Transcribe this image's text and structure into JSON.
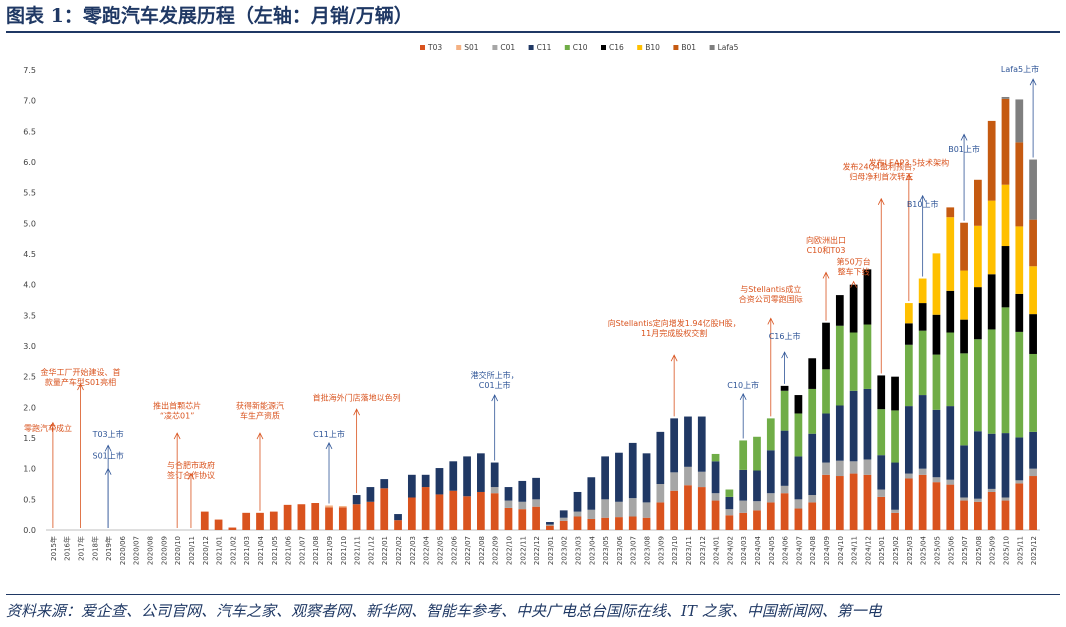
{
  "header": {
    "title": "图表 1：零跑汽车发展历程（左轴：月销/万辆）"
  },
  "footer": {
    "source": "资料来源：爱企查、公司官网、汽车之家、观察者网、新华网、智能车参考、中央广电总台国际在线、IT 之家、中国新闻网、第一电"
  },
  "chart_data": {
    "type": "bar",
    "stacked": true,
    "ylabel": "月销/万辆",
    "ylim": [
      0,
      7.5
    ],
    "yticks": [
      "0.0",
      "0.5",
      "1.0",
      "1.5",
      "2.0",
      "2.5",
      "3.0",
      "3.5",
      "4.0",
      "4.5",
      "5.0",
      "5.5",
      "6.0",
      "6.5",
      "7.0",
      "7.5"
    ],
    "legend_position": "top-center",
    "categories": [
      "2015年",
      "2016年",
      "2017年",
      "2018年",
      "2019年",
      "2020/06",
      "2020/07",
      "2020/08",
      "2020/09",
      "2020/10",
      "2020/11",
      "2020/12",
      "2021/01",
      "2021/02",
      "2021/03",
      "2021/04",
      "2021/05",
      "2021/06",
      "2021/07",
      "2021/08",
      "2021/09",
      "2021/10",
      "2021/11",
      "2021/12",
      "2022/01",
      "2022/02",
      "2022/03",
      "2022/04",
      "2022/05",
      "2022/06",
      "2022/07",
      "2022/08",
      "2022/09",
      "2022/10",
      "2022/11",
      "2022/12",
      "2023/01",
      "2023/02",
      "2023/03",
      "2023/04",
      "2023/05",
      "2023/06",
      "2023/07",
      "2023/08",
      "2023/09",
      "2023/10",
      "2023/11",
      "2023/12",
      "2024/01",
      "2024/02",
      "2024/03",
      "2024/04",
      "2024/05",
      "2024/06",
      "2024/07",
      "2024/08",
      "2024/09",
      "2024/10",
      "2024/11",
      "2024/12",
      "2025/01",
      "2025/02",
      "2025/03",
      "2025/04",
      "2025/05",
      "2025/06",
      "2025/07",
      "2025/08",
      "2025/09",
      "2025/10",
      "2025/11",
      "2025/12"
    ],
    "series": [
      {
        "name": "T03",
        "color": "#d9531e",
        "values": [
          0,
          0,
          0,
          0,
          0,
          0,
          0,
          0,
          0,
          0,
          0,
          0.3,
          0.17,
          0.04,
          0.28,
          0.28,
          0.3,
          0.41,
          0.42,
          0.44,
          0.37,
          0.37,
          0.42,
          0.46,
          0.68,
          0.16,
          0.53,
          0.7,
          0.58,
          0.64,
          0.55,
          0.62,
          0.6,
          0.36,
          0.34,
          0.38,
          0.07,
          0.15,
          0.22,
          0.18,
          0.2,
          0.21,
          0.22,
          0.2,
          0.45,
          0.64,
          0.73,
          0.7,
          0.48,
          0.24,
          0.28,
          0.32,
          0.45,
          0.6,
          0.35,
          0.45,
          0.9,
          0.88,
          0.92,
          0.9,
          0.54,
          0.28,
          0.84,
          0.9,
          0.78,
          0.74,
          0.48,
          0.46,
          0.62,
          0.48,
          0.76,
          0.88
        ]
      },
      {
        "name": "S01",
        "color": "#f4b183",
        "values": [
          0,
          0,
          0,
          0,
          0,
          0,
          0,
          0,
          0,
          0,
          0,
          0,
          0,
          0,
          0,
          0,
          0,
          0,
          0,
          0,
          0.03,
          0.02,
          0,
          0,
          0,
          0,
          0,
          0,
          0,
          0,
          0,
          0,
          0,
          0,
          0,
          0,
          0,
          0,
          0,
          0,
          0,
          0,
          0,
          0,
          0,
          0,
          0,
          0,
          0,
          0,
          0,
          0,
          0,
          0,
          0,
          0,
          0,
          0,
          0,
          0,
          0,
          0,
          0,
          0,
          0,
          0,
          0,
          0,
          0,
          0,
          0,
          0
        ]
      },
      {
        "name": "C01",
        "color": "#a6a6a6",
        "values": [
          0,
          0,
          0,
          0,
          0,
          0,
          0,
          0,
          0,
          0,
          0,
          0,
          0,
          0,
          0,
          0,
          0,
          0,
          0,
          0,
          0,
          0,
          0,
          0,
          0,
          0,
          0,
          0,
          0,
          0,
          0,
          0,
          0.1,
          0.12,
          0.12,
          0.12,
          0.02,
          0.05,
          0.08,
          0.15,
          0.3,
          0.25,
          0.3,
          0.25,
          0.3,
          0.3,
          0.3,
          0.25,
          0.12,
          0.1,
          0.2,
          0.15,
          0.15,
          0.12,
          0.15,
          0.12,
          0.2,
          0.25,
          0.2,
          0.25,
          0.12,
          0.05,
          0.08,
          0.1,
          0.08,
          0.08,
          0.05,
          0.05,
          0.05,
          0.05,
          0.05,
          0.12
        ]
      },
      {
        "name": "C11",
        "color": "#203864",
        "values": [
          0,
          0,
          0,
          0,
          0,
          0,
          0,
          0,
          0,
          0,
          0,
          0,
          0,
          0,
          0,
          0,
          0,
          0,
          0,
          0,
          0,
          0,
          0.15,
          0.24,
          0.15,
          0.1,
          0.37,
          0.2,
          0.43,
          0.48,
          0.65,
          0.63,
          0.4,
          0.22,
          0.34,
          0.35,
          0.04,
          0.12,
          0.32,
          0.53,
          0.7,
          0.8,
          0.9,
          0.8,
          0.85,
          0.88,
          0.82,
          0.9,
          0.52,
          0.2,
          0.5,
          0.5,
          0.7,
          0.9,
          0.7,
          1.0,
          0.8,
          0.9,
          1.15,
          1.15,
          0.56,
          0.77,
          1.1,
          1.2,
          1.1,
          1.2,
          0.85,
          1.1,
          0.9,
          1.05,
          0.7,
          0.6
        ]
      },
      {
        "name": "C10",
        "color": "#70ad47",
        "values": [
          0,
          0,
          0,
          0,
          0,
          0,
          0,
          0,
          0,
          0,
          0,
          0,
          0,
          0,
          0,
          0,
          0,
          0,
          0,
          0,
          0,
          0,
          0,
          0,
          0,
          0,
          0,
          0,
          0,
          0,
          0,
          0,
          0,
          0,
          0,
          0,
          0,
          0,
          0,
          0,
          0,
          0,
          0,
          0,
          0,
          0,
          0,
          0,
          0.12,
          0.12,
          0.48,
          0.55,
          0.52,
          0.65,
          0.7,
          0.73,
          0.72,
          1.3,
          0.95,
          1.05,
          0.75,
          0.85,
          1.0,
          1.05,
          0.9,
          1.2,
          1.5,
          1.5,
          1.7,
          2.05,
          1.72,
          1.27
        ]
      },
      {
        "name": "C16",
        "color": "#000000",
        "values": [
          0,
          0,
          0,
          0,
          0,
          0,
          0,
          0,
          0,
          0,
          0,
          0,
          0,
          0,
          0,
          0,
          0,
          0,
          0,
          0,
          0,
          0,
          0,
          0,
          0,
          0,
          0,
          0,
          0,
          0,
          0,
          0,
          0,
          0,
          0,
          0,
          0,
          0,
          0,
          0,
          0,
          0,
          0,
          0,
          0,
          0,
          0,
          0,
          0,
          0,
          0,
          0,
          0,
          0.08,
          0.3,
          0.5,
          0.76,
          0.5,
          0.78,
          0.9,
          0.55,
          0.55,
          0.35,
          0.45,
          0.65,
          0.68,
          0.55,
          0.85,
          0.9,
          1.0,
          0.62,
          0.65
        ]
      },
      {
        "name": "B10",
        "color": "#ffc000",
        "values": [
          0,
          0,
          0,
          0,
          0,
          0,
          0,
          0,
          0,
          0,
          0,
          0,
          0,
          0,
          0,
          0,
          0,
          0,
          0,
          0,
          0,
          0,
          0,
          0,
          0,
          0,
          0,
          0,
          0,
          0,
          0,
          0,
          0,
          0,
          0,
          0,
          0,
          0,
          0,
          0,
          0,
          0,
          0,
          0,
          0,
          0,
          0,
          0,
          0,
          0,
          0,
          0,
          0,
          0,
          0,
          0,
          0,
          0,
          0,
          0,
          0,
          0,
          0.33,
          0.4,
          1.0,
          1.2,
          0.8,
          1.0,
          1.2,
          1.0,
          1.1,
          0.78
        ]
      },
      {
        "name": "B01",
        "color": "#c55a11",
        "values": [
          0,
          0,
          0,
          0,
          0,
          0,
          0,
          0,
          0,
          0,
          0,
          0,
          0,
          0,
          0,
          0,
          0,
          0,
          0,
          0,
          0,
          0,
          0,
          0,
          0,
          0,
          0,
          0,
          0,
          0,
          0,
          0,
          0,
          0,
          0,
          0,
          0,
          0,
          0,
          0,
          0,
          0,
          0,
          0,
          0,
          0,
          0,
          0,
          0,
          0,
          0,
          0,
          0,
          0,
          0,
          0,
          0,
          0,
          0,
          0,
          0,
          0,
          0,
          0,
          0,
          0.16,
          0.78,
          0.75,
          1.3,
          1.4,
          1.37,
          0.76
        ]
      },
      {
        "name": "Lafa5",
        "color": "#7f7f7f",
        "values": [
          0,
          0,
          0,
          0,
          0,
          0,
          0,
          0,
          0,
          0,
          0,
          0,
          0,
          0,
          0,
          0,
          0,
          0,
          0,
          0,
          0,
          0,
          0,
          0,
          0,
          0,
          0,
          0,
          0,
          0,
          0,
          0,
          0,
          0,
          0,
          0,
          0,
          0,
          0,
          0,
          0,
          0,
          0,
          0,
          0,
          0,
          0,
          0,
          0,
          0,
          0,
          0,
          0,
          0,
          0,
          0,
          0,
          0,
          0,
          0,
          0,
          0,
          0,
          0,
          0,
          0,
          0,
          0,
          0,
          0.03,
          0.7,
          0.98
        ]
      }
    ],
    "annotations": [
      {
        "category": "2015年",
        "value": 1.55,
        "text": "零跑汽车成立",
        "color": "#d9531e",
        "arrow_top": 1.75
      },
      {
        "category": "2017年",
        "value": 2.3,
        "text": "金华工厂开始建设、首\n款量产车型S01亮相",
        "color": "#d9531e",
        "arrow_top": 2.38
      },
      {
        "category": "2019年",
        "value": 1.05,
        "text": "T03上市",
        "color": "#2f5597",
        "arrow_top": 1.38,
        "label_top": 1.45
      },
      {
        "category": "2019年",
        "value": 1.0,
        "text": "S01上市",
        "color": "#2f5597",
        "arrow_top": 1.0,
        "label_top": 1.1
      },
      {
        "category": "2020/11",
        "value": 0.78,
        "text": "与合肥市政府\n签订合作协议",
        "color": "#d9531e",
        "arrow_top": 0.92
      },
      {
        "category": "2020/10",
        "value": 1.75,
        "text": "推出首颗芯片\n“凌芯01”",
        "color": "#d9531e",
        "arrow_top": 1.58
      },
      {
        "category": "2021/04",
        "value": 1.75,
        "text": "获得新能源汽\n车生产资质",
        "color": "#d9531e",
        "arrow_top": 1.58
      },
      {
        "category": "2021/09",
        "value": 1.45,
        "text": "C11上市",
        "color": "#2f5597",
        "arrow_top": 1.42
      },
      {
        "category": "2021/11",
        "value": 2.05,
        "text": "首批海外门店落地以色列",
        "color": "#d9531e",
        "arrow_top": 1.97
      },
      {
        "category": "2022/09",
        "value": 2.25,
        "text": "港交所上市，\nC01上市",
        "color": "#2f5597",
        "arrow_top": 2.2
      },
      {
        "category": "2023/10",
        "value": 3.1,
        "text": "向Stellantis定向增发1.94亿股H股，\n11月完成股权交割",
        "color": "#d9531e",
        "arrow_top": 2.85
      },
      {
        "category": "2024/03",
        "value": 2.25,
        "text": "C10上市",
        "color": "#2f5597",
        "arrow_top": 2.22
      },
      {
        "category": "2024/05",
        "value": 3.65,
        "text": "与Stellantis成立\n合资公司零跑国际",
        "color": "#d9531e",
        "arrow_top": 3.45
      },
      {
        "category": "2024/06",
        "value": 3.05,
        "text": "C16上市",
        "color": "#2f5597",
        "arrow_top": 2.9
      },
      {
        "category": "2024/09",
        "value": 4.45,
        "text": "向欧洲出口\nC10和T03",
        "color": "#d9531e",
        "arrow_top": 4.2
      },
      {
        "category": "2024/11",
        "value": 4.1,
        "text": "第50万台\n整车下线",
        "color": "#d9531e",
        "arrow_top": 4.05
      },
      {
        "category": "2025/01",
        "value": 5.65,
        "text": "发布24Q4盈利预告，\n归母净利首次转正",
        "color": "#d9531e",
        "arrow_top": 5.4
      },
      {
        "category": "2025/03",
        "value": 5.88,
        "text": "发布LEAP3.5技术架构",
        "color": "#d9531e",
        "arrow_top": 5.8
      },
      {
        "category": "2025/04",
        "value": 5.2,
        "text": "B10上市",
        "color": "#2f5597",
        "arrow_top": 5.45
      },
      {
        "category": "2025/07",
        "value": 6.1,
        "text": "B01上市",
        "color": "#2f5597",
        "arrow_top": 6.45
      },
      {
        "category": "2025/12",
        "value": 7.4,
        "text": "Lafa5上市",
        "color": "#2f5597",
        "arrow_top": 7.35
      }
    ]
  }
}
